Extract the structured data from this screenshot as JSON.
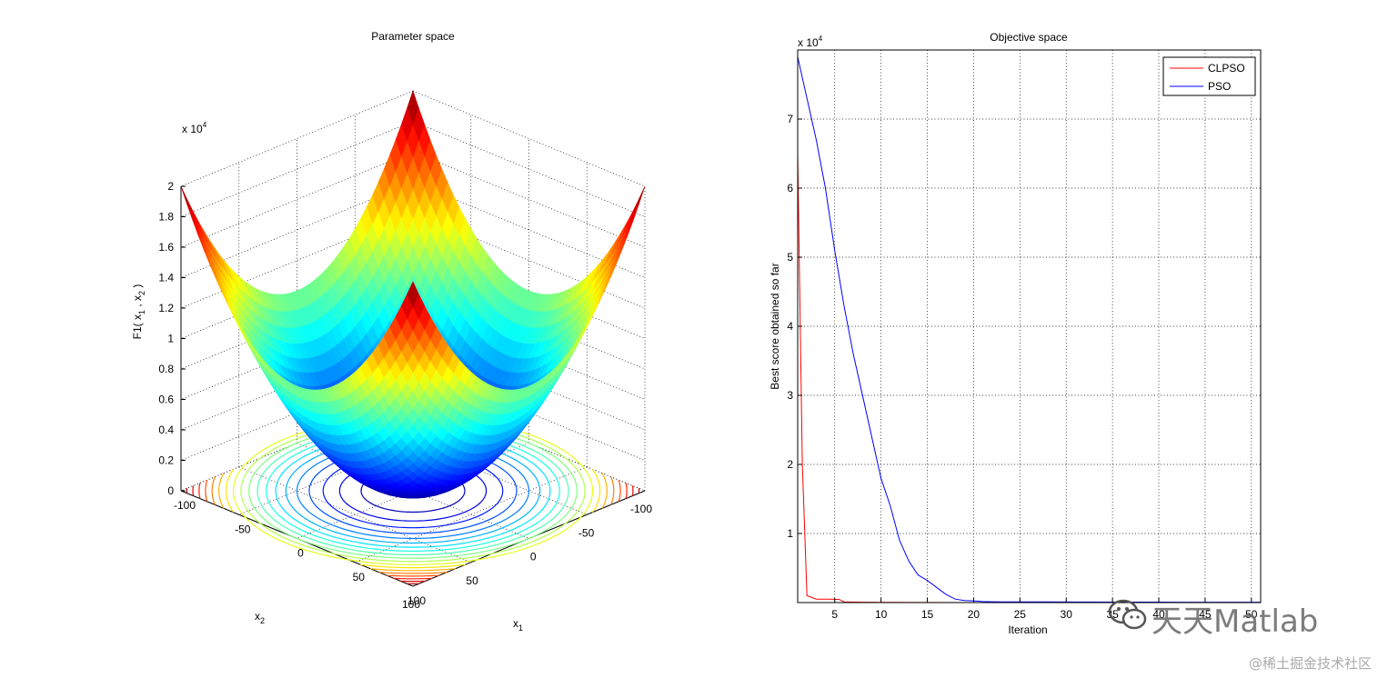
{
  "chart_data": [
    {
      "type": "surface",
      "title": "Parameter space",
      "xlabel_base": "x",
      "xlabel_sub": "1",
      "ylabel_base": "x",
      "ylabel_sub": "2",
      "zlabel": {
        "p1": "F1( x",
        "s1": "1",
        "p2": " , x",
        "s2": "2",
        "p3": " )"
      },
      "z_exponent": {
        "base": "x 10",
        "power": "4"
      },
      "x_ticks": [
        "-100",
        "-50",
        "0",
        "50",
        "100"
      ],
      "y_ticks": [
        "-100",
        "-50",
        "0",
        "50",
        "100"
      ],
      "z_ticks": [
        "0",
        "0.2",
        "0.4",
        "0.6",
        "0.8",
        "1",
        "1.2",
        "1.4",
        "1.6",
        "1.8",
        "2"
      ],
      "x_range": [
        -100,
        100
      ],
      "y_range": [
        -100,
        100
      ],
      "z_range": [
        0,
        20000
      ],
      "function": "x1^2 + x2^2",
      "contour_levels": [
        1000,
        2000,
        3000,
        4000,
        5000,
        6000,
        7000,
        8000,
        9000,
        10000,
        11000,
        12000
      ],
      "grid": true,
      "colormap": "jet"
    },
    {
      "type": "line",
      "title": "Objective space",
      "xlabel": "Iteration",
      "ylabel": "Best score obtained so far",
      "y_exponent": {
        "base": "x 10",
        "power": "4"
      },
      "x_ticks": [
        "5",
        "10",
        "15",
        "20",
        "25",
        "30",
        "35",
        "40",
        "45",
        "50"
      ],
      "y_ticks": [
        "1",
        "2",
        "3",
        "4",
        "5",
        "6",
        "7"
      ],
      "xlim": [
        1,
        51
      ],
      "ylim": [
        0,
        80000
      ],
      "grid": true,
      "legend_position": "top-right",
      "series": [
        {
          "name": "CLPSO",
          "color": "#ff0000",
          "x": [
            1,
            1.5,
            2,
            3,
            4,
            5,
            5.5,
            6,
            8,
            10,
            15,
            20,
            30,
            40,
            51
          ],
          "y": [
            65000,
            20000,
            1000,
            500,
            500,
            480,
            450,
            100,
            50,
            20,
            10,
            5,
            2,
            1,
            1
          ]
        },
        {
          "name": "PSO",
          "color": "#0000ff",
          "x": [
            1,
            2,
            3,
            4,
            5,
            6,
            7,
            8,
            9,
            10,
            11,
            12,
            13,
            14,
            15,
            16,
            17,
            18,
            19,
            20,
            21,
            22,
            23,
            25,
            28,
            30,
            32,
            35,
            38,
            40,
            42,
            45,
            48,
            51
          ],
          "y": [
            79000,
            73000,
            67000,
            60000,
            51000,
            43000,
            36000,
            30000,
            24000,
            18000,
            14000,
            9000,
            6000,
            4000,
            3200,
            2200,
            1200,
            500,
            300,
            250,
            150,
            120,
            100,
            100,
            90,
            80,
            75,
            70,
            65,
            60,
            58,
            55,
            52,
            50
          ]
        }
      ]
    }
  ],
  "watermark": {
    "brand": "天天Matlab",
    "credit": "@稀土掘金技术社区"
  }
}
